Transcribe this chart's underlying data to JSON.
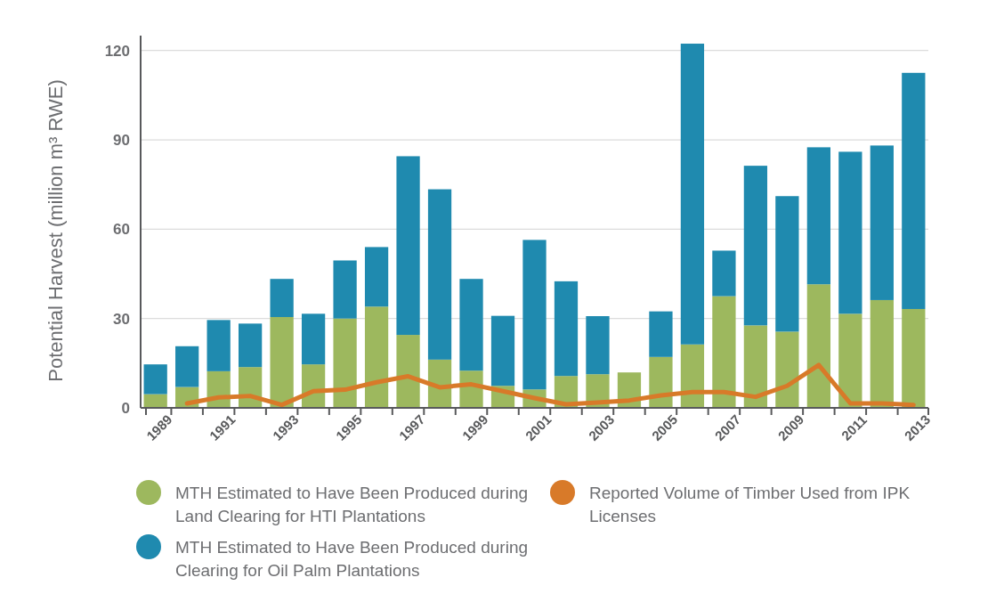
{
  "chart_data": {
    "type": "bar",
    "stacked": true,
    "ylabel": "Potential Harvest (million m³ RWE)",
    "categories": [
      "1989",
      null,
      "1991",
      null,
      "1993",
      null,
      "1995",
      null,
      "1997",
      null,
      "1999",
      null,
      "2001",
      null,
      "2003",
      null,
      "2005",
      null,
      "2007",
      null,
      "2009",
      null,
      "2011",
      null,
      "2013"
    ],
    "series": [
      {
        "name": "MTH Estimated to Have Been Produced during Land Clearing for HTI Plantations",
        "color": "#9db85e",
        "values": [
          4.6,
          7,
          12.3,
          13.7,
          30.5,
          14.6,
          30,
          34,
          24.5,
          16.2,
          12.5,
          7.4,
          6.2,
          10.7,
          11.3,
          11.9,
          17.1,
          21.3,
          37.5,
          27.7,
          25.6,
          41.5,
          31.6,
          36.2,
          33.2
        ]
      },
      {
        "name": "MTH Estimated to Have Been Produced during Clearing for Oil Palm Plantations",
        "color": "#1f8aaf",
        "values": [
          10,
          13.7,
          17.2,
          14.6,
          12.8,
          17,
          19.5,
          20,
          60,
          57.2,
          30.8,
          23.5,
          50.2,
          31.8,
          19.5,
          0,
          15.3,
          101,
          15.3,
          53.6,
          45.5,
          46,
          54.4,
          51.9,
          79.3
        ]
      },
      {
        "name": "Reported Volume of Timber Used from IPK Licenses",
        "type": "line",
        "color": "#d87a29",
        "values": [
          null,
          1.5,
          3.5,
          4,
          1,
          5.6,
          6.1,
          8.6,
          10.6,
          6.9,
          7.9,
          5.6,
          3.3,
          1.2,
          1.8,
          2.5,
          4.2,
          5.3,
          5.3,
          3.7,
          7.4,
          14.4,
          1.5,
          1.5,
          1
        ]
      }
    ],
    "ylim": [
      0,
      125
    ],
    "yticks": [
      0,
      30,
      60,
      90,
      120
    ],
    "grid": "y",
    "legend": "bottom",
    "marker": "none",
    "line_style": "solid"
  }
}
